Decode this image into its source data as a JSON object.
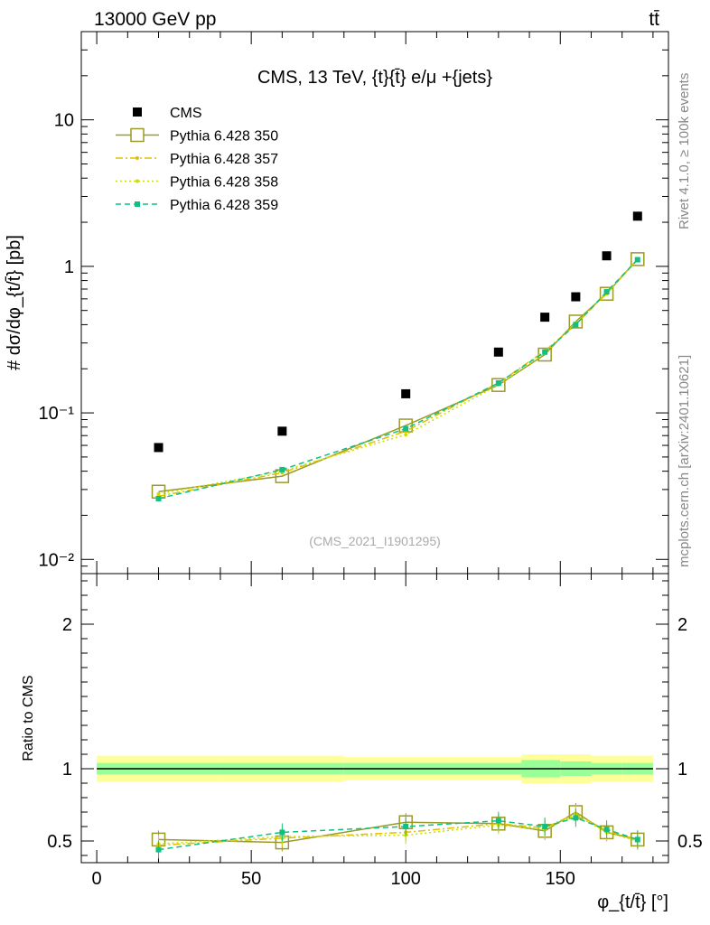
{
  "header": {
    "left": "13000 GeV pp",
    "right": "tt̄"
  },
  "side_labels": {
    "rivet": "Rivet 4.1.0, ≥ 100k events",
    "mcplots": "mcplots.cern.ch [arXiv:2401.10621]"
  },
  "chart_data": [
    {
      "type": "scatter",
      "title": "CMS, 13 TeV, {t}{t̄} e/μ +{jets}",
      "watermark": "(CMS_2021_I1901295)",
      "ylabel": "# dσ/dφ_{t/t̄} [pb]",
      "yscale": "log",
      "ylim": [
        0.008,
        40
      ],
      "xlim": [
        -5,
        185
      ],
      "ytick_labels": [
        {
          "value": 0.01,
          "label": "10⁻²"
        },
        {
          "value": 0.1,
          "label": "10⁻¹"
        },
        {
          "value": 1,
          "label": "1"
        },
        {
          "value": 10,
          "label": "10"
        }
      ],
      "x": [
        20,
        60,
        100,
        130,
        145,
        155,
        165,
        175
      ],
      "series": [
        {
          "name": "CMS",
          "color": "#000000",
          "values": [
            0.058,
            0.075,
            0.135,
            0.26,
            0.45,
            0.62,
            1.18,
            2.2
          ]
        },
        {
          "name": "Pythia 6.428 350",
          "color": "#9a9a28",
          "values": [
            0.029,
            0.037,
            0.082,
            0.155,
            0.25,
            0.42,
            0.65,
            1.12
          ]
        },
        {
          "name": "Pythia 6.428 357",
          "color": "#e0c000",
          "values": [
            0.027,
            0.039,
            0.075,
            0.16,
            0.265,
            0.4,
            0.66,
            1.12
          ]
        },
        {
          "name": "Pythia 6.428 358",
          "color": "#c8e000",
          "values": [
            0.028,
            0.04,
            0.071,
            0.155,
            0.255,
            0.41,
            0.65,
            1.11
          ]
        },
        {
          "name": "Pythia 6.428 359",
          "color": "#10c080",
          "values": [
            0.026,
            0.041,
            0.078,
            0.16,
            0.26,
            0.4,
            0.67,
            1.11
          ]
        }
      ]
    },
    {
      "type": "line",
      "ylabel": "Ratio to CMS",
      "xlabel": "φ_{t/t̄} [°]",
      "ylim": [
        0.35,
        2.35
      ],
      "xlim": [
        -5,
        185
      ],
      "yticks": [
        0.5,
        1,
        2
      ],
      "xticks": [
        0,
        50,
        100,
        150
      ],
      "band_outer": [
        0.09,
        0.09,
        0.08,
        0.08,
        0.1,
        0.1,
        0.09,
        0.09
      ],
      "band_inner": [
        0.04,
        0.04,
        0.04,
        0.04,
        0.06,
        0.05,
        0.04,
        0.04
      ],
      "x": [
        20,
        60,
        100,
        130,
        145,
        155,
        165,
        175
      ],
      "series": [
        {
          "name": "Pythia 6.428 350",
          "color": "#9a9a28",
          "values": [
            0.51,
            0.49,
            0.63,
            0.62,
            0.57,
            0.7,
            0.56,
            0.51
          ]
        },
        {
          "name": "Pythia 6.428 357",
          "color": "#e0c000",
          "values": [
            0.47,
            0.52,
            0.56,
            0.62,
            0.59,
            0.69,
            0.57,
            0.51
          ]
        },
        {
          "name": "Pythia 6.428 358",
          "color": "#c8e000",
          "values": [
            0.48,
            0.53,
            0.54,
            0.61,
            0.58,
            0.68,
            0.56,
            0.5
          ]
        },
        {
          "name": "Pythia 6.428 359",
          "color": "#10c080",
          "values": [
            0.44,
            0.56,
            0.6,
            0.64,
            0.6,
            0.66,
            0.58,
            0.51
          ]
        }
      ]
    }
  ]
}
